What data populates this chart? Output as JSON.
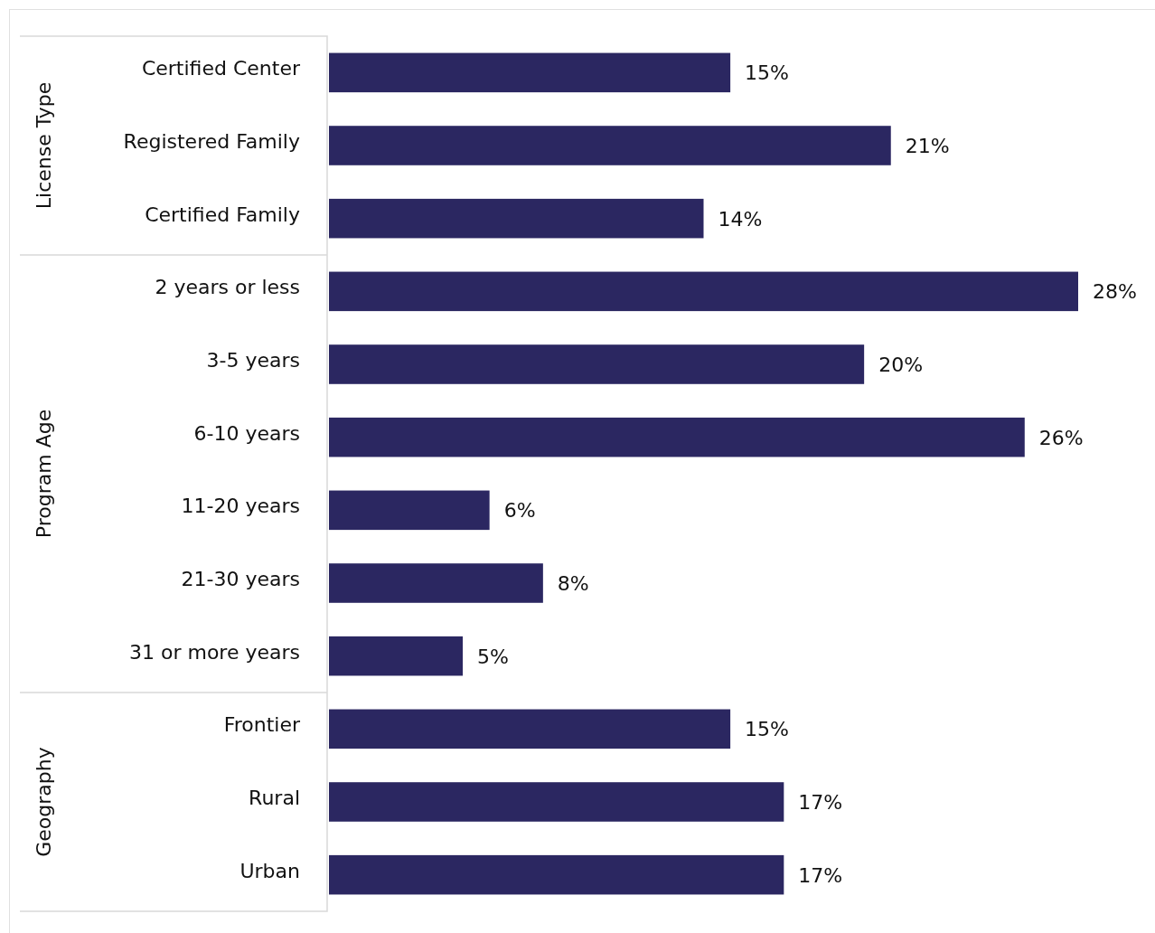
{
  "chart_data": {
    "type": "bar",
    "orientation": "horizontal",
    "categories": [
      "Certified Center",
      "Registered Family",
      "Certified Family",
      "2 years or less",
      "3-5 years",
      "6-10 years",
      "11-20 years",
      "21-30 years",
      "31 or more years",
      "Frontier",
      "Rural",
      "Urban"
    ],
    "values": [
      15,
      21,
      14,
      28,
      20,
      26,
      6,
      8,
      5,
      15,
      17,
      17
    ],
    "value_labels": [
      "15%",
      "21%",
      "14%",
      "28%",
      "20%",
      "26%",
      "6%",
      "8%",
      "5%",
      "15%",
      "17%",
      "17%"
    ],
    "color": "#2b2761",
    "annotations": [
      "License Type",
      "Program Age",
      "Geography"
    ]
  }
}
